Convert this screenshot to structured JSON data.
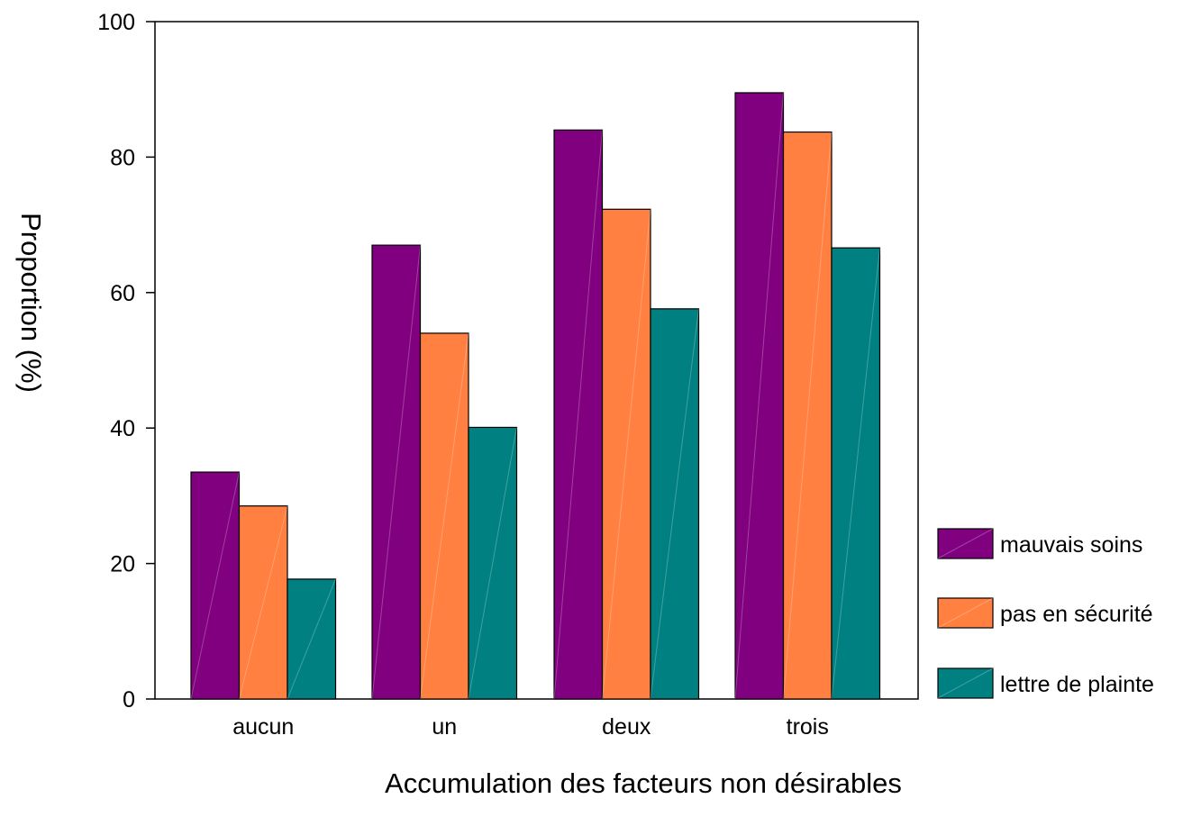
{
  "chart_data": {
    "type": "bar",
    "xlabel": "Accumulation des facteurs non désirables",
    "ylabel": "Proportion (%)",
    "ylim": [
      0,
      100
    ],
    "yticks": [
      0,
      20,
      40,
      60,
      80,
      100
    ],
    "grid": false,
    "legend_position": "right",
    "categories": [
      "aucun",
      "un",
      "deux",
      "trois"
    ],
    "series": [
      {
        "name": "mauvais soins",
        "color": "#800080",
        "values": [
          33.5,
          67,
          84,
          89.5
        ]
      },
      {
        "name": "pas en sécurité",
        "color": "#ff8040",
        "values": [
          28.5,
          54,
          72.3,
          83.7
        ]
      },
      {
        "name": "lettre de plainte",
        "color": "#008080",
        "values": [
          17.7,
          40.1,
          57.6,
          66.6
        ]
      }
    ]
  }
}
